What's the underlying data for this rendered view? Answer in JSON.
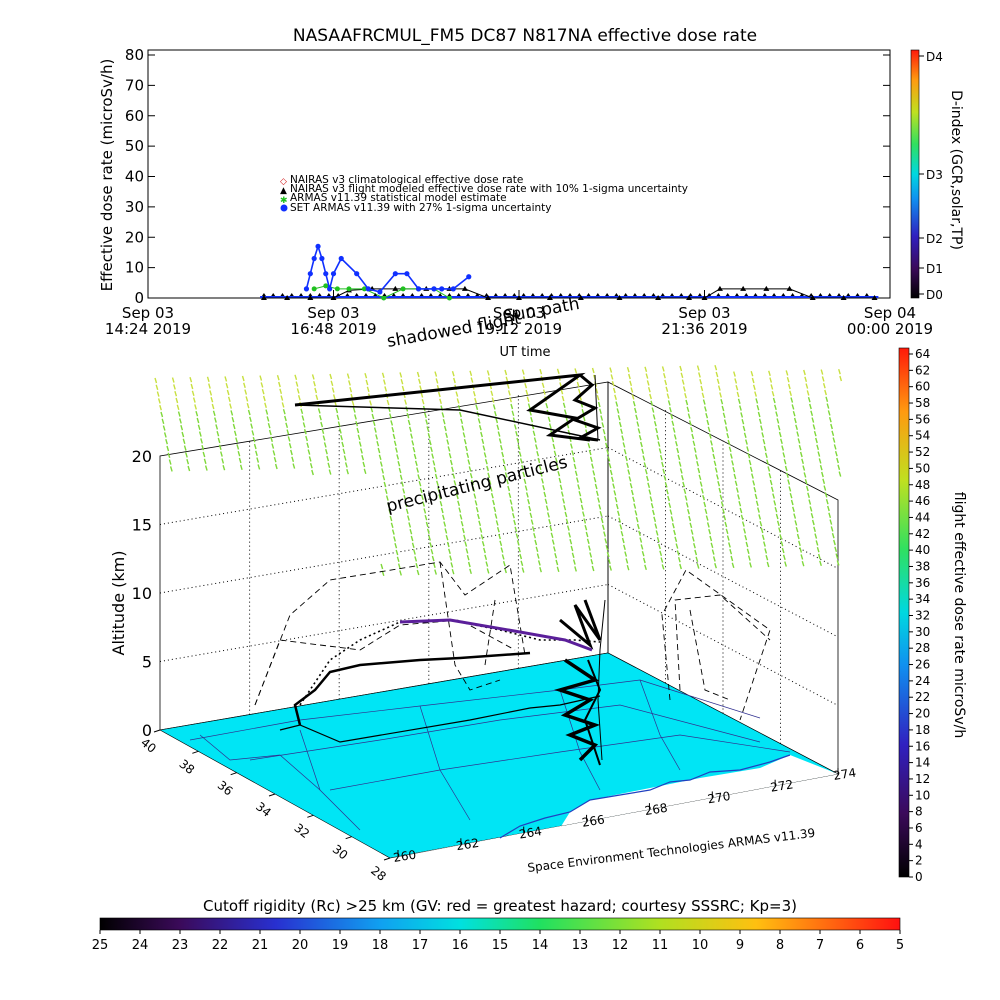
{
  "title": "NASAAFRCMUL_FM5 DC87 N817NA effective dose rate",
  "top_chart": {
    "ylabel": "Effective dose rate (microSv/h)",
    "xlabel": "UT time",
    "yticks": [
      "0",
      "10",
      "20",
      "30",
      "40",
      "50",
      "60",
      "70",
      "80"
    ],
    "xticks": [
      {
        "day": "Sep 03",
        "time": "14:24 2019"
      },
      {
        "day": "Sep 03",
        "time": "16:48 2019"
      },
      {
        "day": "Sep 03",
        "time": "19:12 2019"
      },
      {
        "day": "Sep 03",
        "time": "21:36 2019"
      },
      {
        "day": "Sep 04",
        "time": "00:00 2019"
      }
    ],
    "legend": [
      "NAIRAS v3 climatological effective dose rate",
      "NAIRAS v3 flight modeled effective dose rate with 10% 1-sigma uncertainty",
      "ARMAS v11.39 statistical model estimate",
      "SET ARMAS v11.39 with 27% 1-sigma uncertainty"
    ],
    "dindex_label": "D-index (GCR,solar,TP)",
    "dindex_ticks": [
      "D0",
      "D1",
      "D2",
      "D3",
      "D4"
    ]
  },
  "overlay_text": {
    "shadowed_flight": "shadowed flight",
    "sun_path": "Sun path",
    "precipitating": "precipitating particles",
    "credit": "Space Environment Technologies ARMAS v11.39"
  },
  "bottom_chart": {
    "zlabel": "Altitude (km)",
    "zticks": [
      "0",
      "5",
      "10",
      "15",
      "20"
    ],
    "lat_ticks": [
      "40",
      "38",
      "36",
      "34",
      "32",
      "30",
      "28"
    ],
    "lon_ticks": [
      "260",
      "262",
      "264",
      "266",
      "268",
      "270",
      "272",
      "274"
    ],
    "dose_colorbar_label": "flight effective dose rate microSv/h",
    "dose_colorbar_ticks": [
      "0",
      "2",
      "4",
      "6",
      "8",
      "10",
      "12",
      "14",
      "16",
      "18",
      "20",
      "22",
      "24",
      "26",
      "28",
      "30",
      "32",
      "34",
      "36",
      "38",
      "40",
      "42",
      "44",
      "46",
      "48",
      "50",
      "52",
      "54",
      "56",
      "58",
      "60",
      "62",
      "64"
    ]
  },
  "cutoff_colorbar": {
    "label": "Cutoff rigidity (Rc) >25 km (GV: red = greatest hazard; courtesy SSSRC; Kp=3)",
    "ticks": [
      "25",
      "24",
      "23",
      "22",
      "21",
      "20",
      "19",
      "18",
      "17",
      "16",
      "15",
      "14",
      "13",
      "12",
      "11",
      "10",
      "9",
      "8",
      "7",
      "6",
      "5"
    ]
  },
  "colors": {
    "ocean": "#00e5f5",
    "nairas_climatological": "#d01010",
    "nairas_flight": "#000000",
    "armas_model": "#20c020",
    "set_armas": "#1030ff",
    "precip_green": "#7fd83a",
    "precip_yellow": "#c8e040"
  },
  "chart_data": [
    {
      "type": "scatter",
      "title": "NASAAFRCMUL_FM5 DC87 N817NA effective dose rate",
      "xlabel": "UT time",
      "ylabel": "Effective dose rate (microSv/h)",
      "ylim": [
        0,
        80
      ],
      "xlim_hours": [
        14.4,
        24.0
      ],
      "series": [
        {
          "name": "NAIRAS v3 flight modeled effective dose rate with 10% 1-sigma uncertainty",
          "x_hours": [
            15.9,
            16.2,
            16.5,
            16.8,
            17.0,
            17.3,
            17.6,
            18.0,
            18.3,
            18.5,
            18.8,
            19.2,
            19.6,
            20.0,
            20.5,
            21.0,
            21.4,
            21.6,
            21.8,
            22.1,
            22.4,
            22.7,
            23.0,
            23.4,
            23.8
          ],
          "values": [
            0,
            0,
            0,
            0,
            2.5,
            3,
            3,
            3,
            3,
            3,
            0,
            0,
            0,
            0,
            0,
            0,
            0,
            0,
            3,
            3,
            3,
            3,
            0,
            0,
            0
          ]
        },
        {
          "name": "ARMAS v11.39 statistical model estimate",
          "x_hours": [
            16.55,
            16.7,
            16.85,
            17.0,
            17.2,
            17.45,
            17.7,
            17.9,
            18.1,
            18.3
          ],
          "values": [
            3,
            4,
            3,
            3,
            3,
            0,
            3,
            3,
            3,
            0
          ]
        },
        {
          "name": "SET ARMAS v11.39 with 27% 1-sigma uncertainty",
          "x_hours": [
            16.45,
            16.5,
            16.55,
            16.6,
            16.65,
            16.7,
            16.75,
            16.8,
            16.9,
            17.1,
            17.25,
            17.4,
            17.6,
            17.75,
            17.9,
            18.1,
            18.2,
            18.35,
            18.55
          ],
          "values": [
            3,
            8,
            13,
            17,
            13,
            8,
            3,
            8,
            13,
            8,
            3,
            2,
            8,
            8,
            3,
            3,
            3,
            3,
            7
          ]
        }
      ]
    },
    {
      "type": "scatter",
      "xlabel": "",
      "ylabel": "Altitude (km)",
      "zlim": [
        0,
        20
      ],
      "lat_range": [
        28,
        40
      ],
      "lon_range": [
        260,
        274
      ]
    }
  ]
}
